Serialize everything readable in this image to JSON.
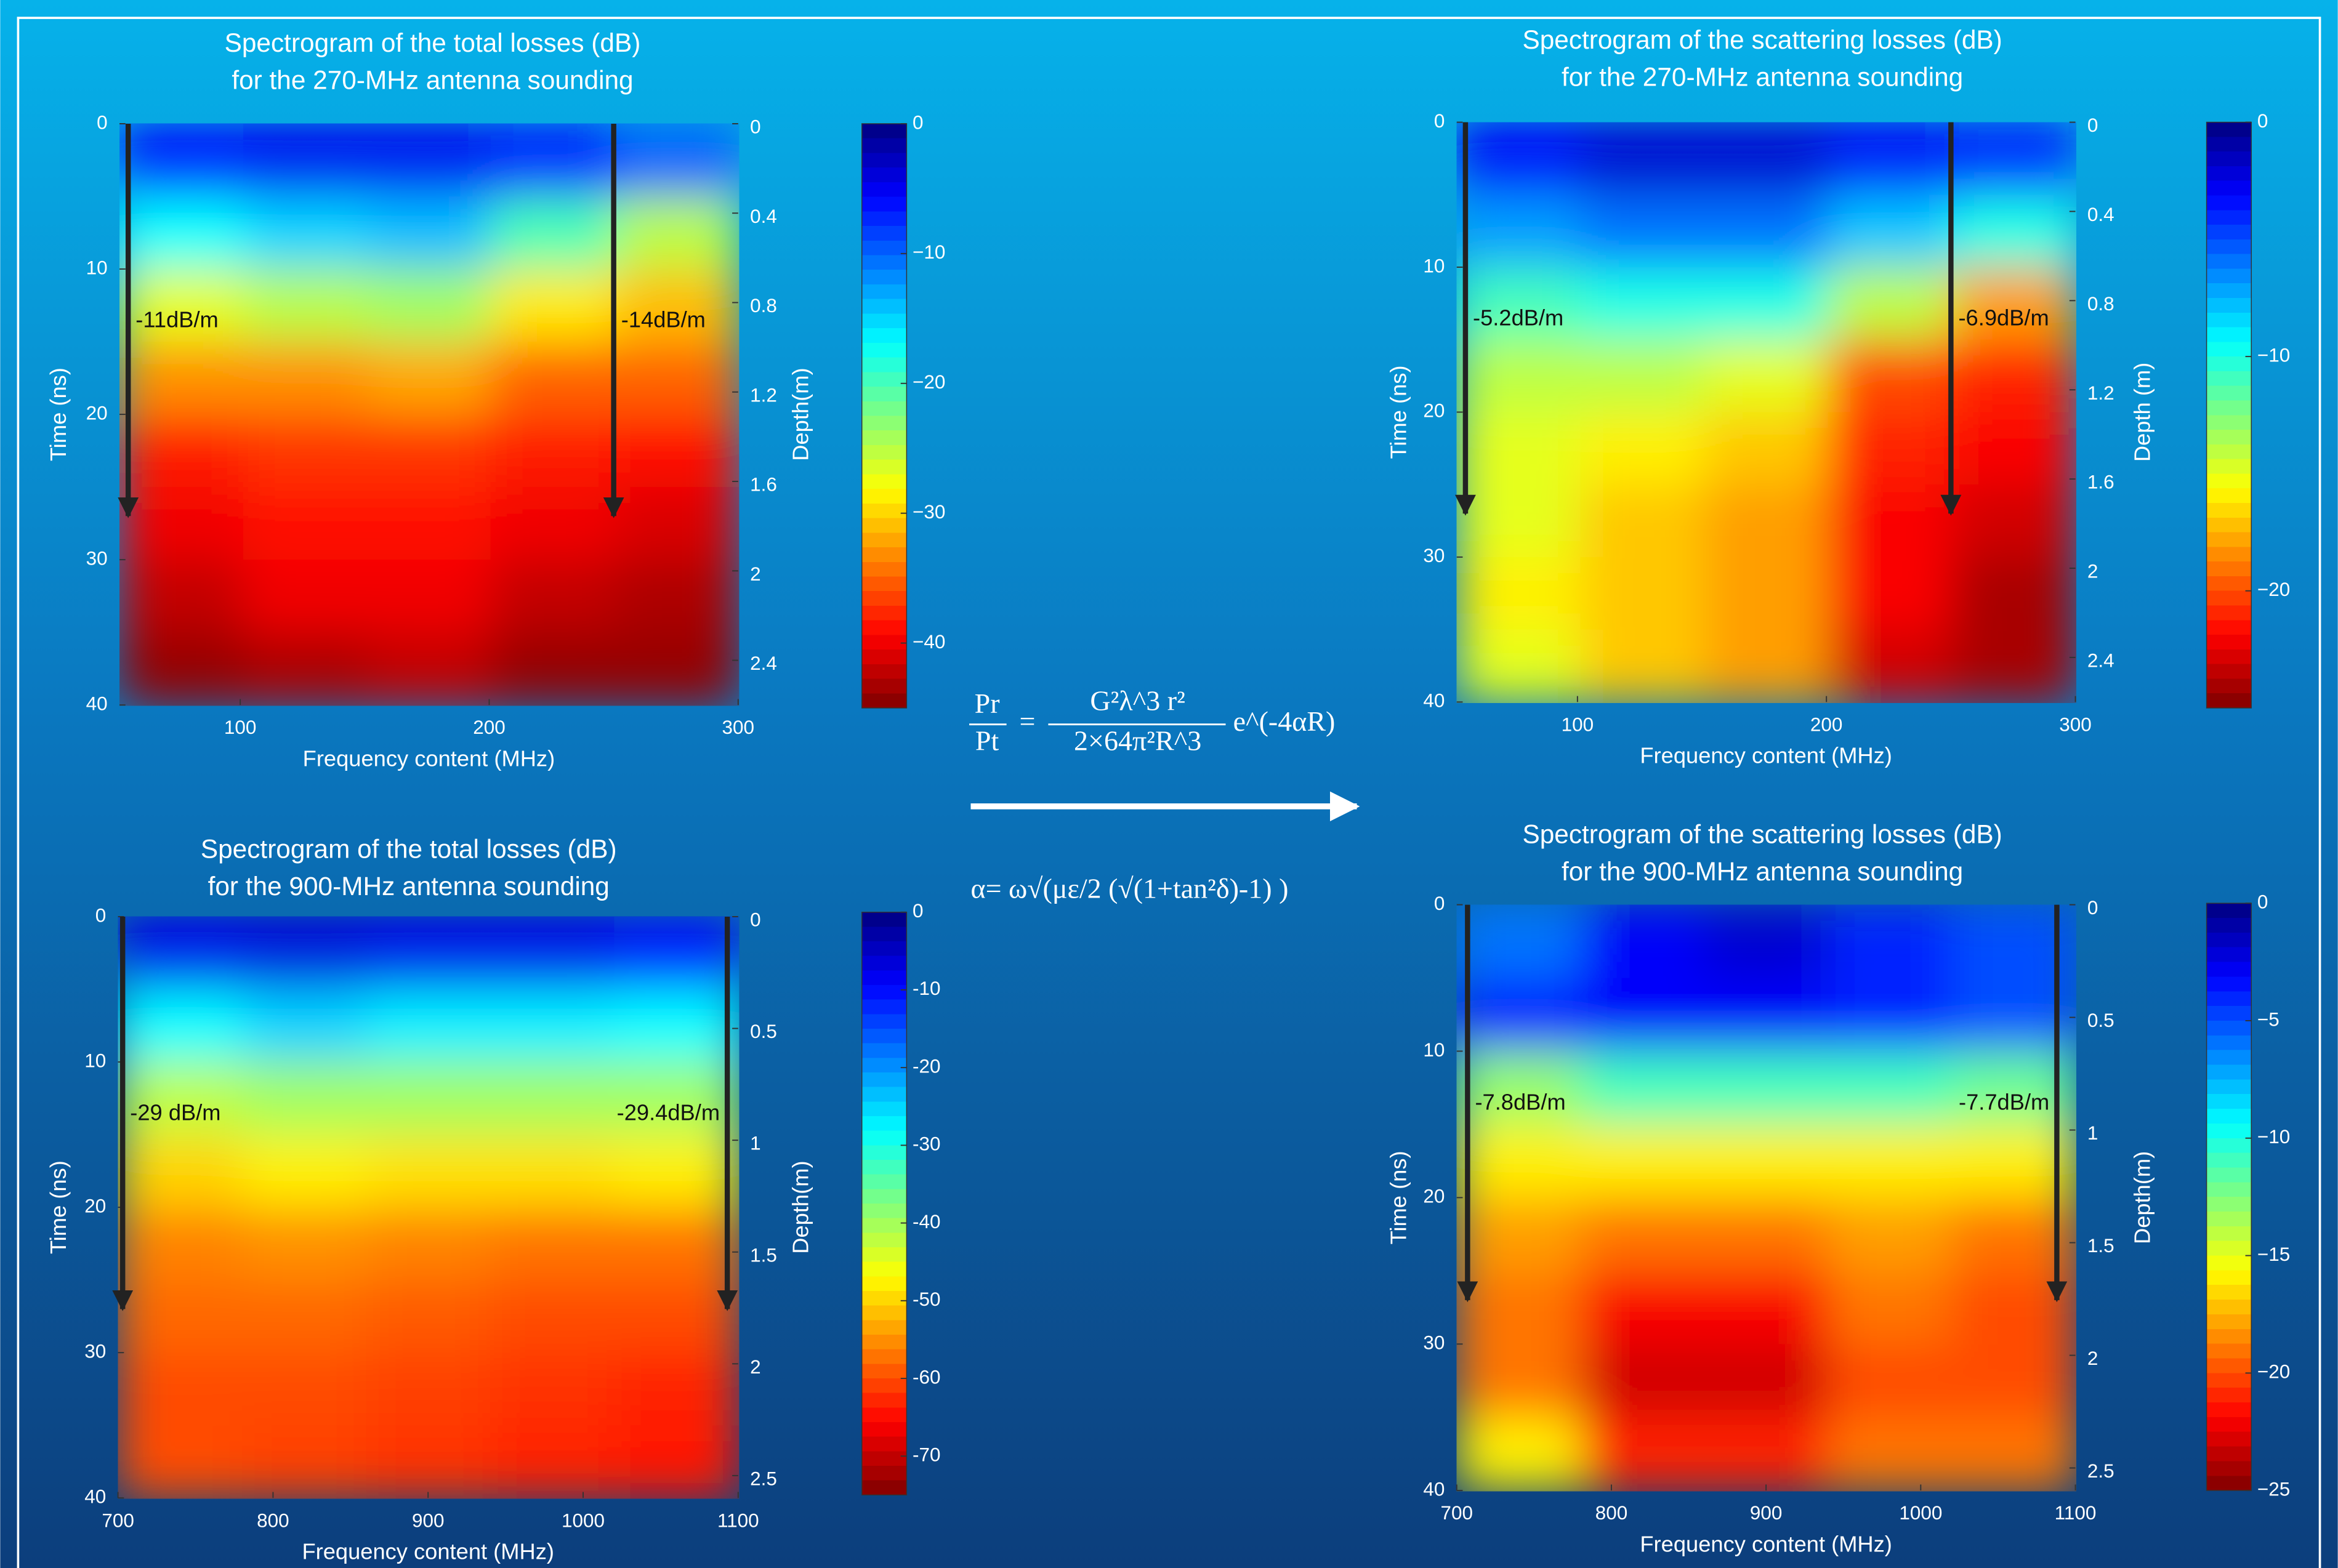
{
  "chart_data": [
    {
      "type": "heatmap",
      "colormap": "jet",
      "title": [
        "Spectrogram of the total losses (dB)",
        "for the 270-MHz antenna sounding"
      ],
      "xlabel": "Frequency content (MHz)",
      "ylabel": "Time (ns)",
      "y2label": "Depth(m)",
      "xlim": [
        51.5,
        300
      ],
      "xticks": [
        100,
        200,
        300
      ],
      "ylim": [
        0,
        40
      ],
      "yticks": [
        0,
        10,
        20,
        30,
        40
      ],
      "y2lim": [
        0,
        2.6
      ],
      "y2ticks": [
        0,
        0.4,
        0.8,
        1.2,
        1.6,
        2,
        2.4
      ],
      "clim": [
        0,
        -45
      ],
      "cticks": [
        0,
        {
          "value": -10,
          "label": "−10"
        },
        {
          "value": -20,
          "label": "−20"
        },
        {
          "value": -30,
          "label": "−30"
        },
        {
          "value": -40,
          "label": "−40"
        }
      ],
      "z": [
        [
          -6,
          -5,
          -5,
          -7,
          -10
        ],
        [
          -17,
          -15,
          -14,
          -20,
          -25
        ],
        [
          -27,
          -25,
          -24,
          -29,
          -31
        ],
        [
          -33,
          -33,
          -32,
          -35,
          -35
        ],
        [
          -38,
          -37,
          -37,
          -38,
          -39
        ],
        [
          -40,
          -39,
          -39,
          -40,
          -41
        ],
        [
          -42,
          -40,
          -40,
          -42,
          -43
        ],
        [
          -44,
          -43,
          -42,
          -44,
          -44
        ]
      ],
      "arrows": [
        {
          "x": 55,
          "to": 27,
          "label": "-11dB/m"
        },
        {
          "x": 250,
          "to": 27,
          "label": "-14dB/m"
        }
      ]
    },
    {
      "type": "heatmap",
      "colormap": "jet",
      "title": [
        "Spectrogram of the scattering losses (dB)",
        "for the 270-MHz antenna sounding"
      ],
      "xlabel": "Frequency content (MHz)",
      "ylabel": "Time (ns)",
      "y2label": "Depth (m)",
      "xlim": [
        51.5,
        300
      ],
      "xticks": [
        100,
        200,
        300
      ],
      "ylim": [
        0,
        40
      ],
      "yticks": [
        0,
        10,
        20,
        30,
        40
      ],
      "y2lim": [
        0,
        2.6
      ],
      "y2ticks": [
        0,
        0.4,
        0.8,
        1.2,
        1.6,
        2,
        2.4
      ],
      "clim": [
        0,
        -25
      ],
      "cticks": [
        0,
        {
          "value": -10,
          "label": "−10"
        },
        {
          "value": -20,
          "label": "−20"
        }
      ],
      "z": [
        [
          -3,
          -2,
          -2,
          -3,
          -4
        ],
        [
          -7,
          -6,
          -6,
          -8,
          -10
        ],
        [
          -11,
          -10,
          -10,
          -14,
          -18
        ],
        [
          -14,
          -14,
          -15,
          -20,
          -21
        ],
        [
          -15,
          -16,
          -17,
          -21,
          -22
        ],
        [
          -15,
          -17,
          -18,
          -22,
          -23
        ],
        [
          -16,
          -17,
          -18,
          -22,
          -24
        ],
        [
          -15,
          -17,
          -18,
          -23,
          -24
        ]
      ],
      "arrows": [
        {
          "x": 55,
          "to": 27,
          "label": "-5.2dB/m"
        },
        {
          "x": 250,
          "to": 27,
          "label": "-6.9dB/m"
        }
      ]
    },
    {
      "type": "heatmap",
      "colormap": "jet",
      "title": [
        "Spectrogram of the total losses (dB)",
        "for the 900-MHz antenna sounding"
      ],
      "xlabel": "Frequency content (MHz)",
      "ylabel": "Time (ns)",
      "y2label": "Depth(m)",
      "xlim": [
        700,
        1100
      ],
      "xticks": [
        700,
        800,
        900,
        1000,
        1100
      ],
      "ylim": [
        0,
        40
      ],
      "yticks": [
        0,
        10,
        20,
        30,
        40
      ],
      "y2lim": [
        0,
        2.6
      ],
      "y2ticks": [
        0,
        0.5,
        1,
        1.5,
        2,
        2.5
      ],
      "clim": [
        0,
        -75
      ],
      "cticks": [
        0,
        -10,
        -20,
        -30,
        -40,
        -50,
        -60,
        -70
      ],
      "z": [
        [
          -8,
          -7,
          -8,
          -8,
          -10
        ],
        [
          -28,
          -25,
          -27,
          -27,
          -28
        ],
        [
          -42,
          -40,
          -40,
          -40,
          -40
        ],
        [
          -50,
          -48,
          -49,
          -49,
          -48
        ],
        [
          -56,
          -55,
          -56,
          -57,
          -57
        ],
        [
          -58,
          -58,
          -59,
          -60,
          -60
        ],
        [
          -60,
          -60,
          -61,
          -62,
          -63
        ],
        [
          -60,
          -61,
          -62,
          -63,
          -64
        ]
      ],
      "arrows": [
        {
          "x": 703,
          "to": 27,
          "label": "-29 dB/m"
        },
        {
          "x": 1093,
          "to": 27,
          "label": "-29.4dB/m"
        }
      ]
    },
    {
      "type": "heatmap",
      "colormap": "jet",
      "title": [
        "Spectrogram of the scattering losses (dB)",
        "for the 900-MHz antenna sounding"
      ],
      "xlabel": "Frequency content (MHz)",
      "ylabel": "Time (ns)",
      "y2label": "Depth(m)",
      "xlim": [
        700,
        1100
      ],
      "xticks": [
        700,
        800,
        900,
        1000,
        1100
      ],
      "ylim": [
        0,
        40
      ],
      "yticks": [
        0,
        10,
        20,
        30,
        40
      ],
      "y2lim": [
        0,
        2.6
      ],
      "y2ticks": [
        0,
        0.5,
        1,
        1.5,
        2,
        2.5
      ],
      "clim": [
        0,
        -25
      ],
      "cticks": [
        0,
        {
          "value": -5,
          "label": "−5"
        },
        {
          "value": -10,
          "label": "−10"
        },
        {
          "value": -15,
          "label": "−15"
        },
        {
          "value": -20,
          "label": "−20"
        },
        {
          "value": -25,
          "label": "−25"
        }
      ],
      "z": [
        [
          -6,
          -3,
          -2,
          -4,
          -5
        ],
        [
          -4,
          -3,
          -3,
          -4,
          -5
        ],
        [
          -13,
          -11,
          -11,
          -11,
          -12
        ],
        [
          -16,
          -16,
          -16,
          -16,
          -16
        ],
        [
          -18,
          -19,
          -19,
          -18,
          -19
        ],
        [
          -19,
          -22,
          -22,
          -19,
          -20
        ],
        [
          -19,
          -23,
          -23,
          -20,
          -20
        ],
        [
          -16,
          -21,
          -21,
          -19,
          -19
        ]
      ],
      "arrows": [
        {
          "x": 707,
          "to": 27,
          "label": "-7.8dB/m"
        },
        {
          "x": 1088,
          "to": 27,
          "label": "-7.7dB/m"
        }
      ]
    }
  ],
  "equation": {
    "lhs_num": "Pr",
    "lhs_den": "Pt",
    "equals": "=",
    "rhs_num": "G²λ^3 r²",
    "rhs_den": "2×64π²R^3",
    "factor": "e^(-4αR)"
  },
  "alpha": "α= ω√(με/2 (√(1+tan²δ)-1) )"
}
